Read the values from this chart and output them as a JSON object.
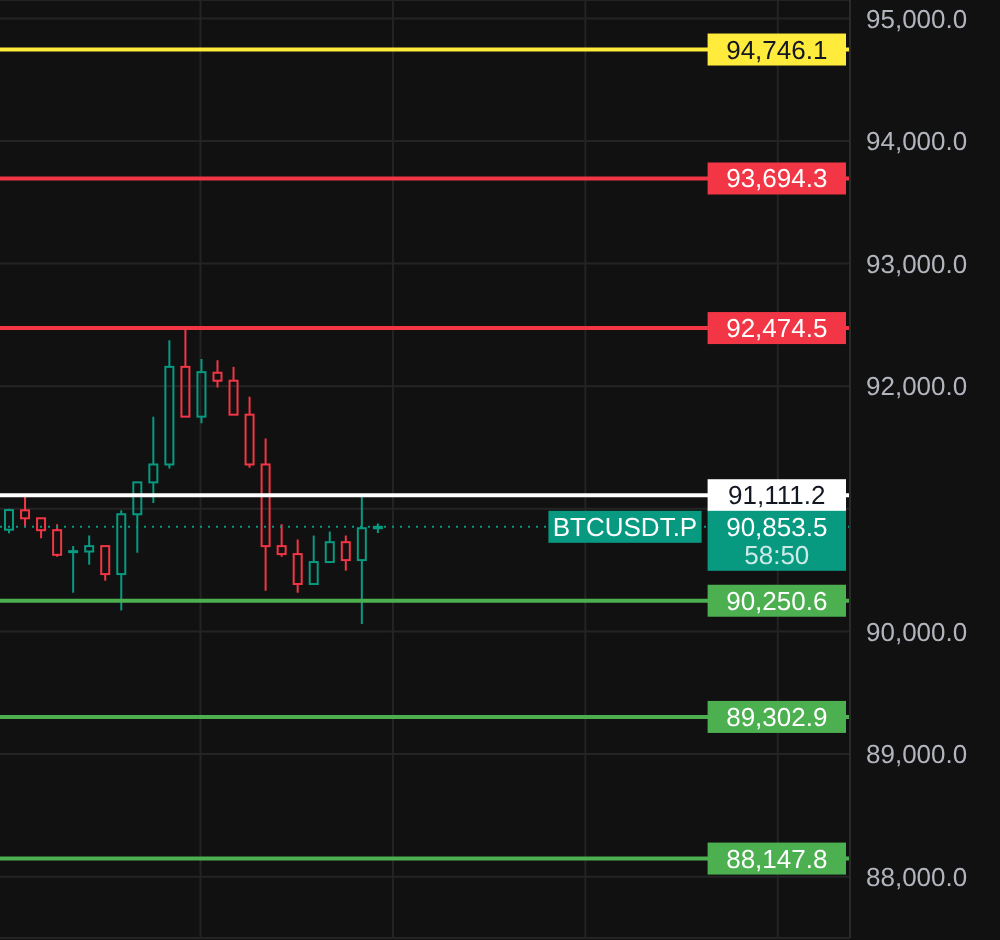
{
  "chart_data": {
    "type": "candlestick",
    "categories": [
      null,
      null,
      null,
      null,
      null,
      null,
      null,
      null,
      null,
      null,
      null,
      null,
      null,
      null,
      null,
      null,
      null,
      null,
      null,
      null,
      null,
      null,
      null,
      null,
      null,
      null,
      null,
      null,
      null,
      null,
      null,
      null,
      null,
      null,
      null,
      null,
      null,
      null,
      null,
      null,
      null,
      null,
      null,
      null,
      null,
      null,
      null,
      null,
      null,
      null,
      null,
      null,
      null
    ],
    "ohlc": [
      [
        90830,
        91000,
        90800,
        90990
      ],
      [
        90988,
        91097,
        90858,
        90923
      ],
      [
        90923,
        90925,
        90761,
        90826
      ],
      [
        90826,
        90874,
        90609,
        90625
      ],
      [
        90650,
        90696,
        90316,
        90655
      ],
      [
        90652,
        90782,
        90544,
        90696
      ],
      [
        90696,
        90696,
        90414,
        90468
      ],
      [
        90468,
        90988,
        90170,
        90956
      ],
      [
        90956,
        91216,
        90642,
        91216
      ],
      [
        91216,
        91752,
        91048,
        91362
      ],
      [
        91362,
        92375,
        91329,
        92158
      ],
      [
        92158,
        92472,
        91752,
        91752
      ],
      [
        91752,
        92223,
        91698,
        92115
      ],
      [
        92110,
        92212,
        91990,
        92045
      ],
      [
        92045,
        92158,
        91768,
        91768
      ],
      [
        91768,
        91915,
        91335,
        91362
      ],
      [
        91362,
        91573,
        90333,
        90696
      ],
      [
        90696,
        90874,
        90609,
        90631
      ],
      [
        90631,
        90750,
        90316,
        90387
      ],
      [
        90387,
        90782,
        90387,
        90566
      ],
      [
        90566,
        90815,
        90566,
        90728
      ],
      [
        90728,
        90782,
        90495,
        90582
      ],
      [
        90582,
        91097,
        90060,
        90842
      ],
      [
        90842,
        90880,
        90804,
        90853.5
      ],
      null,
      null,
      null,
      null,
      null,
      null,
      null,
      null,
      null,
      null,
      null,
      null,
      null,
      null,
      null,
      null,
      null,
      null,
      null,
      null,
      null,
      null,
      null,
      null,
      null,
      null,
      null,
      null,
      null
    ],
    "colors": [
      "#089981",
      "#f23645",
      "#f23645",
      "#f23645",
      "#089981",
      "#089981",
      "#f23645",
      "#089981",
      "#089981",
      "#089981",
      "#089981",
      "#f23645",
      "#089981",
      "#f23645",
      "#f23645",
      "#f23645",
      "#f23645",
      "#f23645",
      "#f23645",
      "#089981",
      "#089981",
      "#f23645",
      "#089981",
      "#089981",
      null,
      null,
      null,
      null,
      null,
      null,
      null,
      null,
      null,
      null,
      null,
      null,
      null,
      null,
      null,
      null,
      null,
      null,
      null,
      null,
      null,
      null,
      null,
      null,
      null,
      null,
      null,
      null,
      null
    ],
    "ylim": [
      87500,
      95150
    ],
    "yticks": [
      {
        "value": 88000,
        "label": "88,000.0"
      },
      {
        "value": 89000,
        "label": "89,000.0"
      },
      {
        "value": 90000,
        "label": "90,000.0"
      },
      {
        "value": 91000,
        "label": null
      },
      {
        "value": 92000,
        "label": "92,000.0"
      },
      {
        "value": 93000,
        "label": "93,000.0"
      },
      {
        "value": 94000,
        "label": "94,000.0"
      },
      {
        "value": 95000,
        "label": "95,000.0"
      }
    ],
    "grid": true,
    "tick_labels": "y",
    "ref_lines": [
      {
        "axis": "y",
        "value": 94746.1,
        "label": "94,746.1",
        "color": "#ffeb3b"
      },
      {
        "axis": "y",
        "value": 93694.3,
        "label": "93,694.3",
        "color": "#f23645"
      },
      {
        "axis": "y",
        "value": 92474.5,
        "label": "92,474.5",
        "color": "#f23645"
      },
      {
        "axis": "y",
        "value": 91111.2,
        "label": "91,111.2",
        "color": "#ffffff"
      },
      {
        "axis": "y",
        "value": 90853.5,
        "label": "90,853.5",
        "color": "#089981",
        "line_style": "dotted"
      },
      {
        "axis": "y",
        "value": 90250.6,
        "label": "90,250.6",
        "color": "#4caf50"
      },
      {
        "axis": "y",
        "value": 89302.9,
        "label": "89,302.9",
        "color": "#4caf50"
      },
      {
        "axis": "y",
        "value": 88147.8,
        "label": "88,147.8",
        "color": "#4caf50"
      }
    ],
    "annotations": [
      {
        "text": "BTCUSDT.P",
        "y": 90853.5
      },
      {
        "text": "58:50",
        "y": 90853.5
      }
    ]
  }
}
